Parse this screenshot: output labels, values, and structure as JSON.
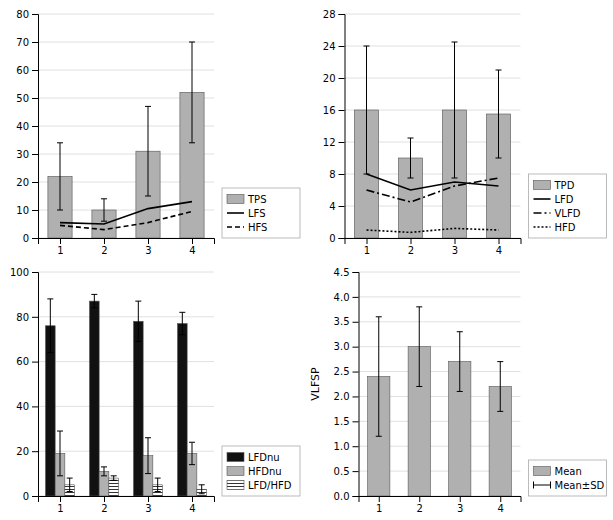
{
  "chart_data": [
    {
      "type": "bar",
      "x": [
        1,
        2,
        3,
        4
      ],
      "xlim": [
        0.5,
        4.5
      ],
      "xticks": [
        1,
        2,
        3,
        4
      ],
      "ylim": [
        0,
        80
      ],
      "yticks": [
        0,
        10,
        20,
        30,
        40,
        50,
        60,
        70,
        80
      ],
      "grid": true,
      "legend": "right",
      "series": [
        {
          "name": "TPS",
          "type": "bar",
          "color": "#b0b0b0",
          "values": [
            22,
            10,
            31,
            52
          ],
          "error": [
            12,
            4,
            16,
            18
          ]
        },
        {
          "name": "LFS",
          "type": "line",
          "color": "#000000",
          "line_style": "solid",
          "values": [
            5.5,
            5.0,
            10.5,
            13.0
          ]
        },
        {
          "name": "HFS",
          "type": "line",
          "color": "#000000",
          "line_style": "dashed",
          "values": [
            4.5,
            3.0,
            5.5,
            9.5
          ]
        }
      ]
    },
    {
      "type": "bar",
      "x": [
        1,
        2,
        3,
        4
      ],
      "xlim": [
        0.5,
        4.5
      ],
      "xticks": [
        1,
        2,
        3,
        4
      ],
      "ylim": [
        0,
        28
      ],
      "yticks": [
        0,
        4,
        8,
        12,
        16,
        20,
        24,
        28
      ],
      "grid": true,
      "legend": "right",
      "series": [
        {
          "name": "TPD",
          "type": "bar",
          "color": "#b0b0b0",
          "values": [
            16,
            10,
            16,
            15.5
          ],
          "error": [
            8,
            2.5,
            8.5,
            5.5
          ]
        },
        {
          "name": "LFD",
          "type": "line",
          "color": "#000000",
          "line_style": "solid",
          "values": [
            8,
            6.0,
            7.0,
            6.5
          ]
        },
        {
          "name": "VLFD",
          "type": "line",
          "color": "#000000",
          "line_style": "dashdot",
          "values": [
            6.0,
            4.5,
            6.5,
            7.5
          ]
        },
        {
          "name": "HFD",
          "type": "line",
          "color": "#000000",
          "line_style": "dotted",
          "values": [
            1.0,
            0.7,
            1.2,
            1.0
          ]
        }
      ]
    },
    {
      "type": "bar",
      "x": [
        1,
        2,
        3,
        4
      ],
      "xlim": [
        0.5,
        4.5
      ],
      "xticks": [
        1,
        2,
        3,
        4
      ],
      "ylim": [
        0,
        100
      ],
      "yticks": [
        0,
        20,
        40,
        60,
        80,
        100
      ],
      "grid": true,
      "legend": "right",
      "series": [
        {
          "name": "LFDnu",
          "type": "bar",
          "color": "#111111",
          "values": [
            76,
            87,
            78,
            77
          ],
          "error": [
            12,
            3,
            9,
            5
          ]
        },
        {
          "name": "HFDnu",
          "type": "bar",
          "color": "#b0b0b0",
          "values": [
            19,
            11,
            18,
            19
          ],
          "error": [
            10,
            2,
            8,
            5
          ]
        },
        {
          "name": "LFD/HFD",
          "type": "bar",
          "color": "#ffffff",
          "values": [
            5,
            8,
            5,
            3
          ],
          "error": [
            3,
            1,
            3,
            2
          ]
        }
      ]
    },
    {
      "type": "bar",
      "x": [
        1,
        2,
        3,
        4
      ],
      "xlim": [
        0.5,
        4.5
      ],
      "xticks": [
        1,
        2,
        3,
        4
      ],
      "ylim": [
        0,
        4.5
      ],
      "yticks": [
        {
          "value": 0,
          "label": "0.0"
        },
        0.5,
        {
          "value": 1,
          "label": "1.0"
        },
        1.5,
        {
          "value": 2,
          "label": "2.0"
        },
        2.5,
        {
          "value": 3,
          "label": "3.0"
        },
        3.5,
        {
          "value": 4,
          "label": "4.0"
        },
        4.5
      ],
      "ylabel": "VLFSP",
      "grid": true,
      "legend": "right",
      "series": [
        {
          "name": "Mean",
          "type": "bar",
          "color": "#b0b0b0",
          "values": [
            2.4,
            3.0,
            2.7,
            2.2
          ],
          "error": [
            1.2,
            0.8,
            0.6,
            0.5
          ],
          "error_name": "Mean±SD"
        }
      ]
    }
  ]
}
